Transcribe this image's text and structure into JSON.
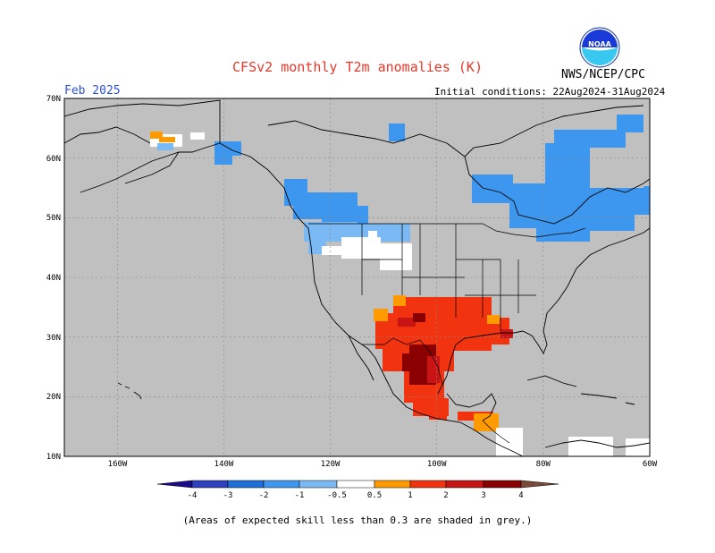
{
  "header": {
    "title": "CFSv2 monthly T2m anomalies (K)",
    "agency": "NWS/NCEP/CPC",
    "period": "Feb 2025",
    "initial_conditions": "Initial conditions: 22Aug2024-31Aug2024",
    "logo_text": "NOAA"
  },
  "map": {
    "lat_labels": [
      "70N",
      "60N",
      "50N",
      "40N",
      "30N",
      "20N",
      "10N"
    ],
    "lon_labels": [
      "160W",
      "140W",
      "120W",
      "100W",
      "80W",
      "60W"
    ],
    "background_color": "#c0c0c0",
    "unskilled_note": "grey = expected skill < 0.3"
  },
  "colorbar": {
    "labels": [
      "-4",
      "-3",
      "-2",
      "-1",
      "-0.5",
      "0.5",
      "1",
      "2",
      "3",
      "4"
    ],
    "colors": [
      "#1a0a8c",
      "#2e3fbf",
      "#1e6fd9",
      "#3d97ef",
      "#7bb9f5",
      "#ffffff",
      "#ff9a00",
      "#f2330f",
      "#c81414",
      "#8b0000",
      "#c09080",
      "#7a4a3a"
    ]
  },
  "footnote": "(Areas of expected skill less than 0.3 are shaded in grey.)"
}
